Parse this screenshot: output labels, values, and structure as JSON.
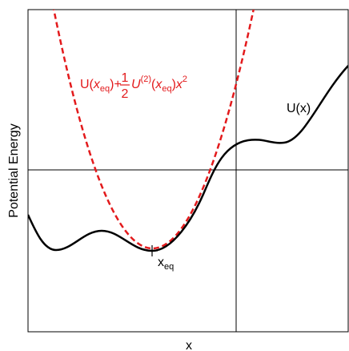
{
  "figure": {
    "xlabel": "x",
    "ylabel": "Potential Energy",
    "colors": {
      "potential": "#000000",
      "approximation": "#e31a1c",
      "frame": "#000000",
      "background": "#ffffff"
    }
  },
  "labels": {
    "potential": "U(x)",
    "xeq": {
      "base": "x",
      "sub": "eq"
    },
    "approximation": {
      "prefix": "U(",
      "arg_base": "x",
      "arg_sub": "eq",
      "close_plus": ")+",
      "half_num": "1",
      "half_den": "2",
      "U2": "U",
      "U2_sup": "(2)",
      "open2": "(",
      "arg2_base": "x",
      "arg2_sub": "eq",
      "close2": ")",
      "x": "x",
      "x_sup": "2"
    }
  },
  "markers": {
    "equilibrium": "plus-marker"
  },
  "chart_data": {
    "type": "line",
    "series": [
      {
        "name": "U(x)",
        "style": "solid",
        "color": "#000000"
      },
      {
        "name": "U(xeq)+1/2U(2)(xeq)x2",
        "style": "dashed",
        "color": "#e31a1c"
      }
    ],
    "reference_lines": [
      "vertical",
      "horizontal"
    ],
    "grid": false,
    "ticks": false
  }
}
